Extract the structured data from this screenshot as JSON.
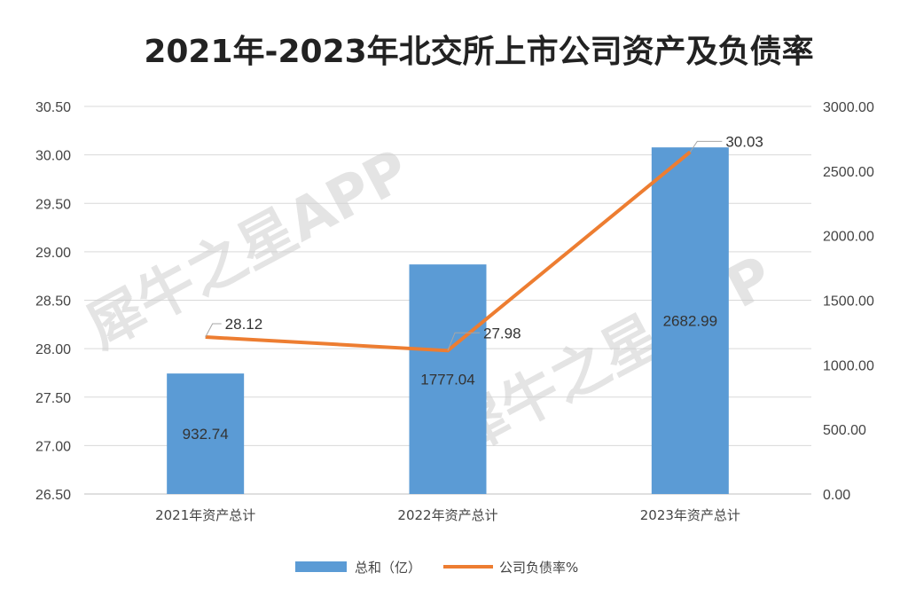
{
  "chart_data": {
    "type": "bar+line",
    "title": "2021年-2023年北交所上市公司资产及负债率",
    "categories": [
      "2021年资产总计",
      "2022年资产总计",
      "2023年资产总计"
    ],
    "series": [
      {
        "name": "总和（亿）",
        "type": "bar",
        "axis": "right",
        "values": [
          932.74,
          1777.04,
          2682.99
        ],
        "color": "#5b9bd5"
      },
      {
        "name": "公司负债率%",
        "type": "line",
        "axis": "left",
        "values": [
          28.12,
          27.98,
          30.03
        ],
        "color": "#ed7d31"
      }
    ],
    "data_labels": {
      "bar": [
        "932.74",
        "1777.04",
        "2682.99"
      ],
      "line": [
        "28.12",
        "27.98",
        "30.03"
      ]
    },
    "y_left": {
      "range": [
        26.5,
        30.5
      ],
      "ticks": [
        "26.50",
        "27.00",
        "27.50",
        "28.00",
        "28.50",
        "29.00",
        "29.50",
        "30.00",
        "30.50"
      ]
    },
    "y_right": {
      "range": [
        0,
        3000
      ],
      "ticks": [
        "0.00",
        "500.00",
        "1000.00",
        "1500.00",
        "2000.00",
        "2500.00",
        "3000.00"
      ]
    },
    "grid": true,
    "legend_position": "bottom",
    "watermark": "犀牛之星APP"
  }
}
